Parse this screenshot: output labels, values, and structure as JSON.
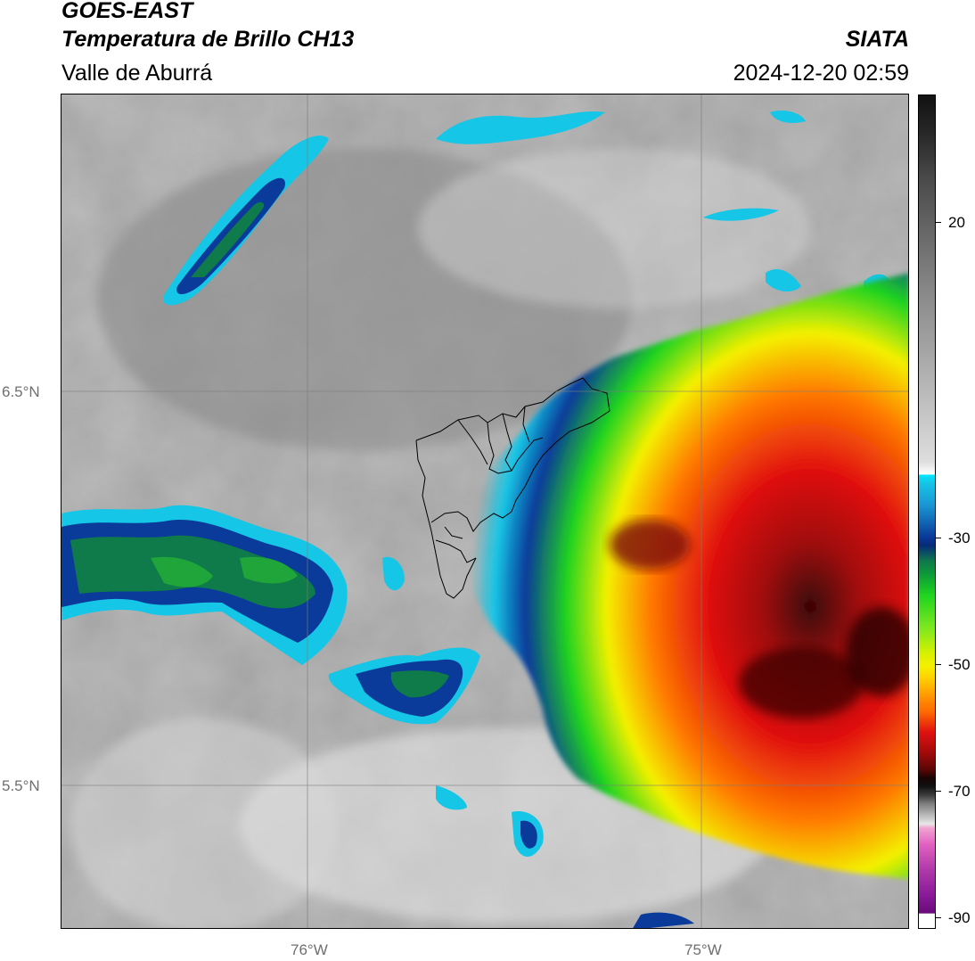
{
  "header": {
    "title_line1": "GOES-EAST",
    "title_line2": "Temperatura de Brillo CH13",
    "subtitle": "Valle de Aburrá",
    "org": "SIATA",
    "timestamp": "2024-12-20 02:59"
  },
  "axes": {
    "lat_labels": [
      "6.5°N",
      "5.5°N"
    ],
    "lon_labels": [
      "76°W",
      "75°W"
    ]
  },
  "colorbar": {
    "ticks": [
      "20",
      "-30",
      "-50",
      "-70",
      "-90"
    ],
    "colors": {
      "high": "#111111",
      "grey": "#9a9a9a",
      "white": "#f2f2f2",
      "cyan": "#16c6e6",
      "blue": "#0a3a9a",
      "green": "#1fd41f",
      "yellow": "#f4f000",
      "orange": "#ff8a00",
      "red": "#e01010",
      "dark": "#3a0606",
      "magenta": "#8a1a9a"
    }
  }
}
